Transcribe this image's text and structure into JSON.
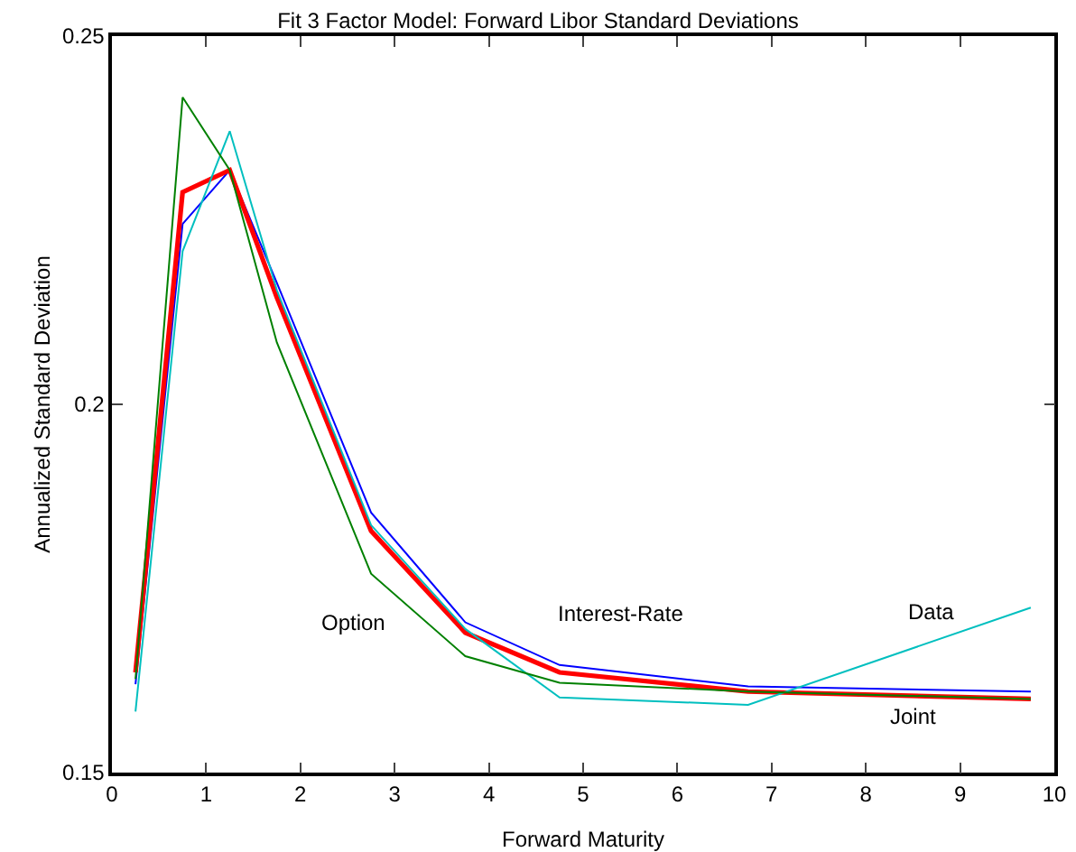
{
  "chart_data": {
    "type": "line",
    "title": "Fit 3 Factor Model: Forward Libor Standard Deviations",
    "xlabel": "Forward Maturity",
    "ylabel": "Annualized Standard Deviation",
    "x": [
      0.25,
      0.75,
      1.25,
      1.75,
      2.75,
      3.75,
      4.75,
      6.75,
      9.75
    ],
    "series": [
      {
        "name": "Interest-Rate",
        "color": "#0000ff",
        "values": [
          0.162,
          0.2245,
          0.2318,
          0.2165,
          0.1853,
          0.1704,
          0.1646,
          0.1617,
          0.161
        ]
      },
      {
        "name": "Joint",
        "color": "#ff0000",
        "values": [
          0.1636,
          0.2288,
          0.2318,
          0.2145,
          0.1828,
          0.169,
          0.1636,
          0.161,
          0.16
        ]
      },
      {
        "name": "Data",
        "color": "#00bfbf",
        "values": [
          0.1583,
          0.2208,
          0.2371,
          0.2155,
          0.1836,
          0.1695,
          0.1602,
          0.1592,
          0.1724
        ]
      },
      {
        "name": "Option",
        "color": "#008000",
        "values": [
          0.1627,
          0.2417,
          0.2318,
          0.2084,
          0.177,
          0.1658,
          0.1622,
          0.161,
          0.16
        ]
      }
    ],
    "xlim": [
      0,
      10
    ],
    "xticks": [
      0,
      1,
      2,
      3,
      4,
      5,
      6,
      7,
      8,
      9,
      10
    ],
    "ylim": [
      0.15,
      0.25
    ],
    "yticks": [
      0.15,
      0.2,
      0.25
    ],
    "grid": false,
    "legend": false,
    "marker": "none",
    "line_style": "solid"
  }
}
